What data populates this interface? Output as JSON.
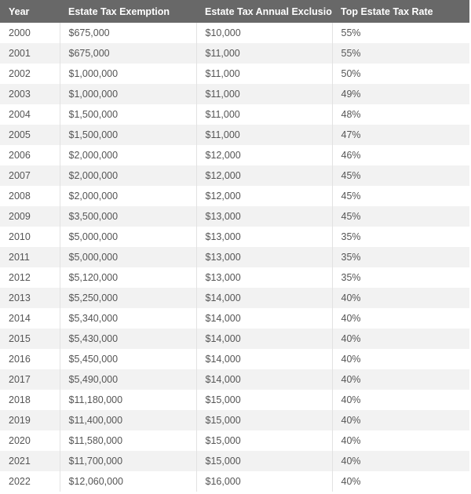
{
  "table": {
    "headers": [
      "Year",
      "Estate Tax Exemption",
      "Estate Tax Annual Exclusion",
      "Top Estate Tax Rate"
    ],
    "rows": [
      [
        "2000",
        "$675,000",
        "$10,000",
        "55%"
      ],
      [
        "2001",
        "$675,000",
        "$11,000",
        "55%"
      ],
      [
        "2002",
        "$1,000,000",
        "$11,000",
        "50%"
      ],
      [
        "2003",
        "$1,000,000",
        "$11,000",
        "49%"
      ],
      [
        "2004",
        "$1,500,000",
        "$11,000",
        "48%"
      ],
      [
        "2005",
        "$1,500,000",
        "$11,000",
        "47%"
      ],
      [
        "2006",
        "$2,000,000",
        "$12,000",
        "46%"
      ],
      [
        "2007",
        "$2,000,000",
        "$12,000",
        "45%"
      ],
      [
        "2008",
        "$2,000,000",
        "$12,000",
        "45%"
      ],
      [
        "2009",
        "$3,500,000",
        "$13,000",
        "45%"
      ],
      [
        "2010",
        "$5,000,000",
        "$13,000",
        "35%"
      ],
      [
        "2011",
        "$5,000,000",
        "$13,000",
        "35%"
      ],
      [
        "2012",
        "$5,120,000",
        "$13,000",
        "35%"
      ],
      [
        "2013",
        "$5,250,000",
        "$14,000",
        "40%"
      ],
      [
        "2014",
        "$5,340,000",
        "$14,000",
        "40%"
      ],
      [
        "2015",
        "$5,430,000",
        "$14,000",
        "40%"
      ],
      [
        "2016",
        "$5,450,000",
        "$14,000",
        "40%"
      ],
      [
        "2017",
        "$5,490,000",
        "$14,000",
        "40%"
      ],
      [
        "2018",
        "$11,180,000",
        "$15,000",
        "40%"
      ],
      [
        "2019",
        "$11,400,000",
        "$15,000",
        "40%"
      ],
      [
        "2020",
        "$11,580,000",
        "$15,000",
        "40%"
      ],
      [
        "2021",
        "$11,700,000",
        "$15,000",
        "40%"
      ],
      [
        "2022",
        "$12,060,000",
        "$16,000",
        "40%"
      ]
    ]
  },
  "colors": {
    "header_bg": "#686868",
    "header_text": "#ffffff",
    "row_alt_bg": "#f2f2f2",
    "cell_text": "#555555"
  }
}
